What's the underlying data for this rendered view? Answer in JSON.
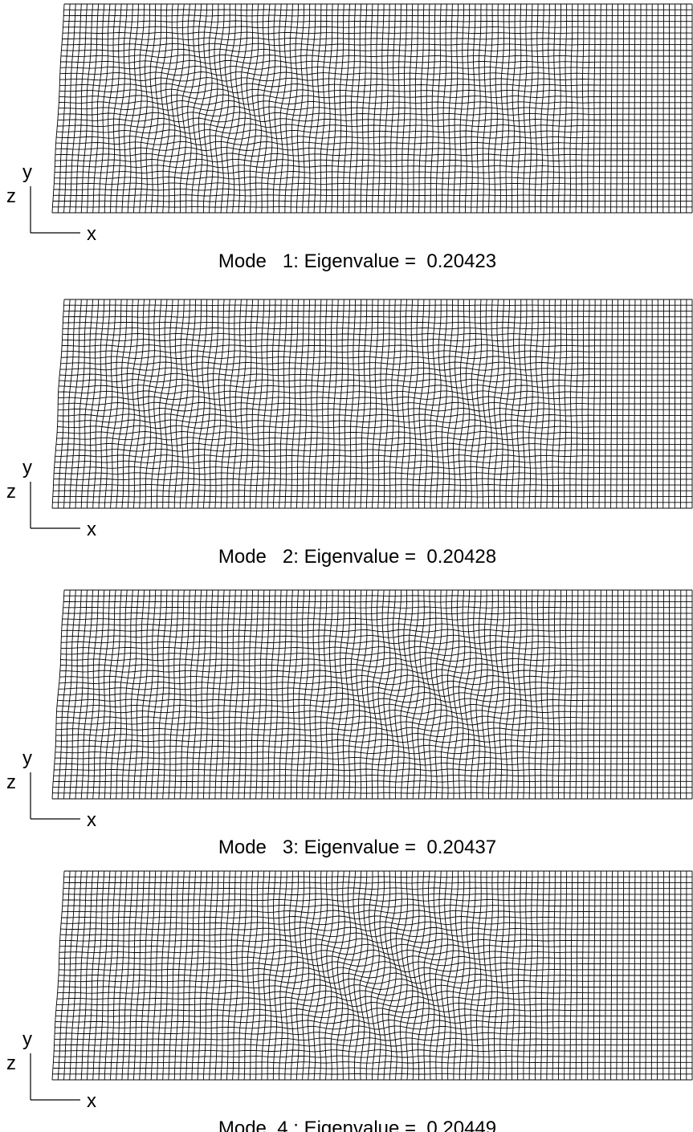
{
  "panels": [
    {
      "axes": {
        "y": "y",
        "z": "z",
        "x": "x"
      },
      "caption": "Mode   1: Eigenvalue =  0.20423"
    },
    {
      "axes": {
        "y": "y",
        "z": "z",
        "x": "x"
      },
      "caption": "Mode   2: Eigenvalue =  0.20428"
    },
    {
      "axes": {
        "y": "y",
        "z": "z",
        "x": "x"
      },
      "caption": "Mode   3: Eigenvalue =  0.20437"
    },
    {
      "axes": {
        "y": "y",
        "z": "z",
        "x": "x"
      },
      "caption": "Mode  4 : Eigenvalue =  0.20449"
    }
  ]
}
